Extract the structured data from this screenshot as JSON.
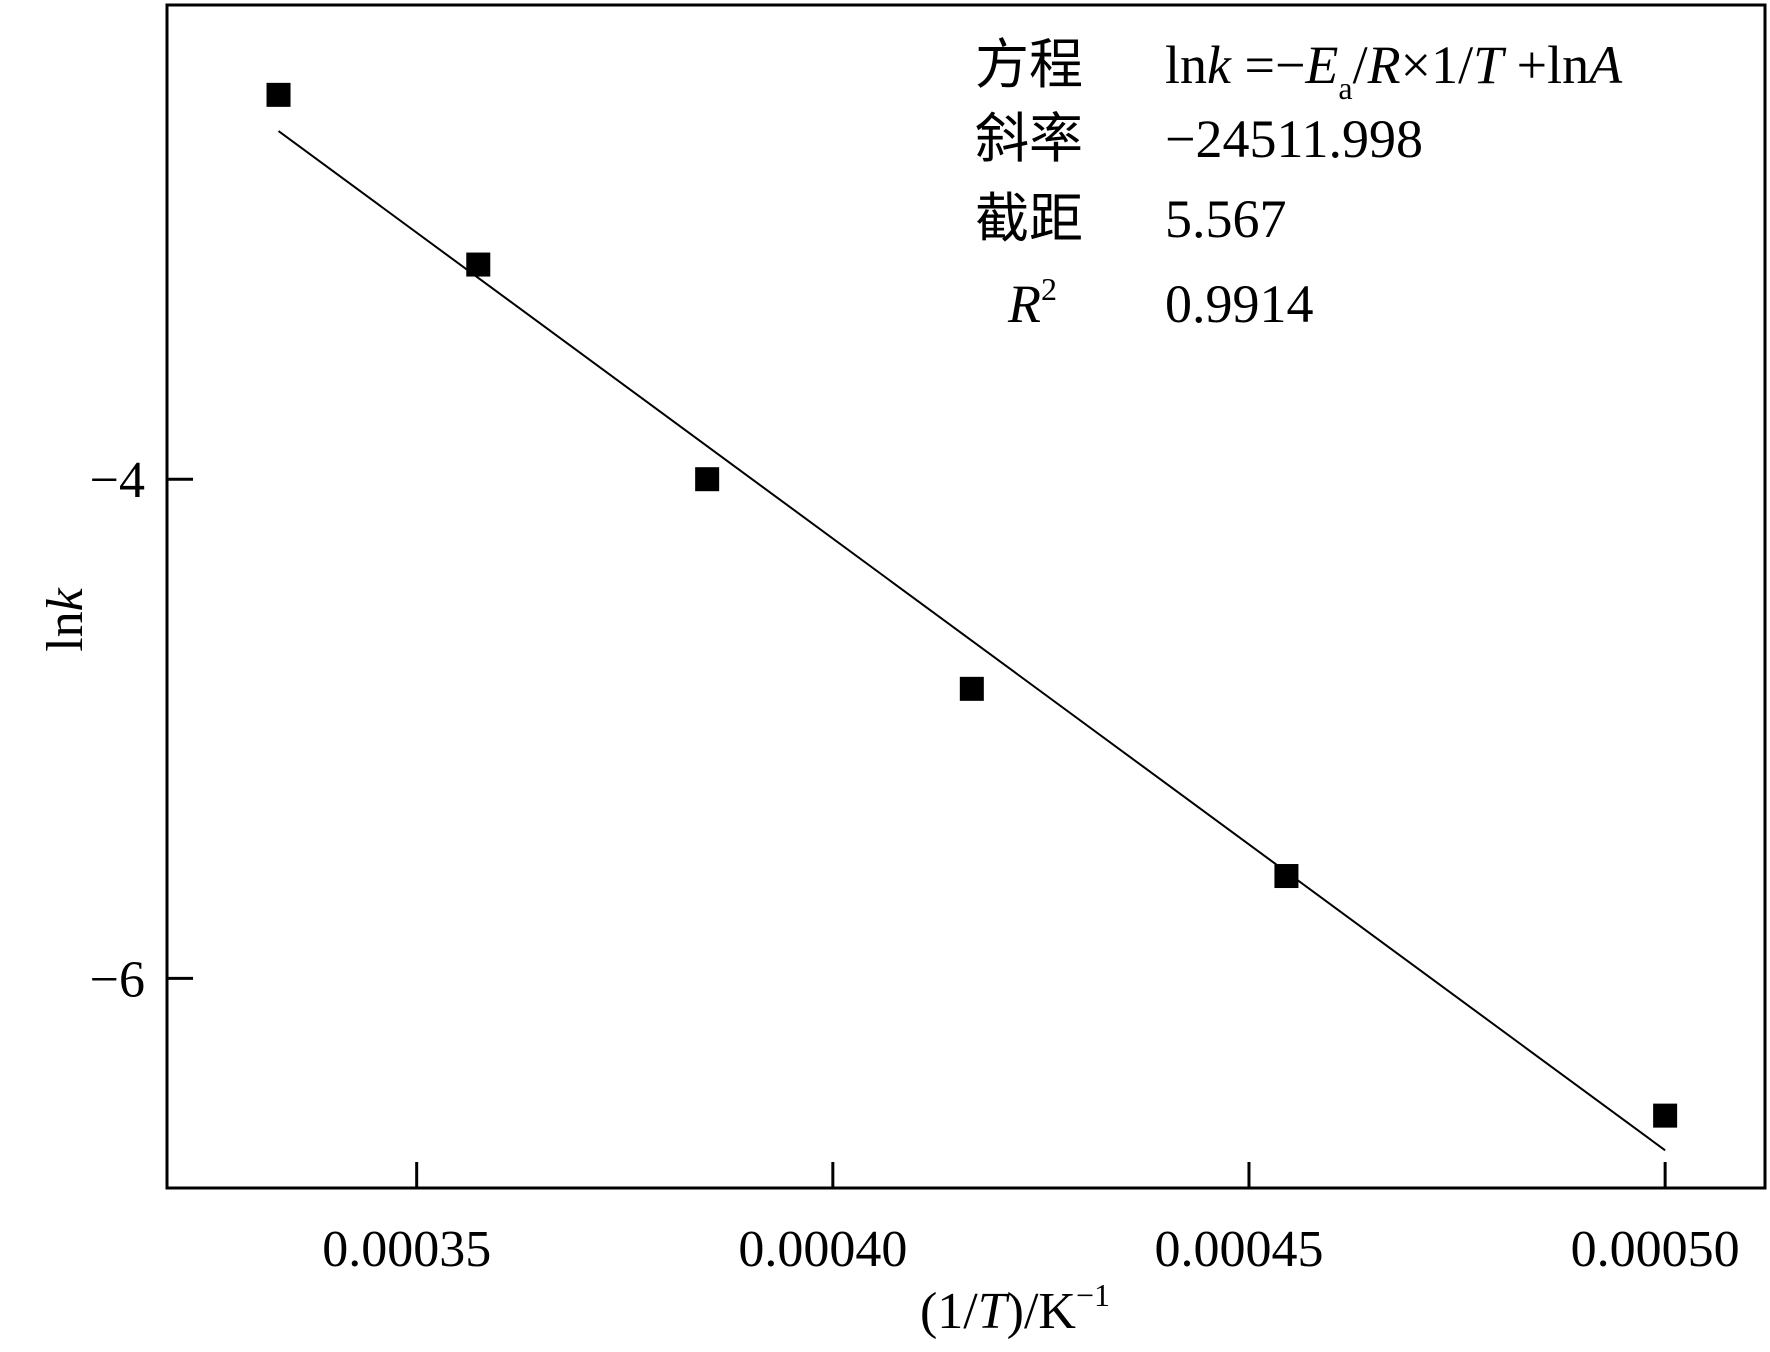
{
  "chart_data": {
    "type": "scatter",
    "xlabel_parts": [
      "(1/",
      "T",
      ")/K",
      "−1"
    ],
    "ylabel_parts": [
      "ln",
      "k"
    ],
    "xlim": [
      0.00032,
      0.000512
    ],
    "ylim": [
      -6.84,
      -2.1
    ],
    "x_ticks": [
      0.00035,
      0.0004,
      0.00045,
      0.0005
    ],
    "x_tick_labels": [
      "0.00035",
      "0.00040",
      "0.00045",
      "0.00050"
    ],
    "y_ticks": [
      -4,
      -6
    ],
    "y_tick_labels": [
      "−4",
      "−6"
    ],
    "grid": false,
    "series": [
      {
        "points": [
          {
            "x": 0.0003334,
            "y": -2.46
          },
          {
            "x": 0.0003574,
            "y": -3.14
          },
          {
            "x": 0.0003849,
            "y": -4.0
          },
          {
            "x": 0.0004167,
            "y": -4.84
          },
          {
            "x": 0.0004545,
            "y": -5.59
          },
          {
            "x": 0.0005,
            "y": -6.55
          }
        ]
      }
    ],
    "fit": {
      "slope": -24511.998,
      "intercept": 5.567,
      "x_range": [
        0.0003334,
        0.0005
      ]
    },
    "stats_table": {
      "position": "top-right",
      "rows": [
        {
          "label": "方程",
          "value_parts": [
            "ln",
            "k",
            " =−",
            "E",
            "a",
            "/",
            "R",
            "×1/",
            "T",
            " +ln",
            "A"
          ]
        },
        {
          "label": "斜率",
          "value": "−24511.998"
        },
        {
          "label": "截距",
          "value": "5.567"
        },
        {
          "label_parts": [
            "R",
            "2"
          ],
          "value": "0.9914"
        }
      ]
    }
  }
}
